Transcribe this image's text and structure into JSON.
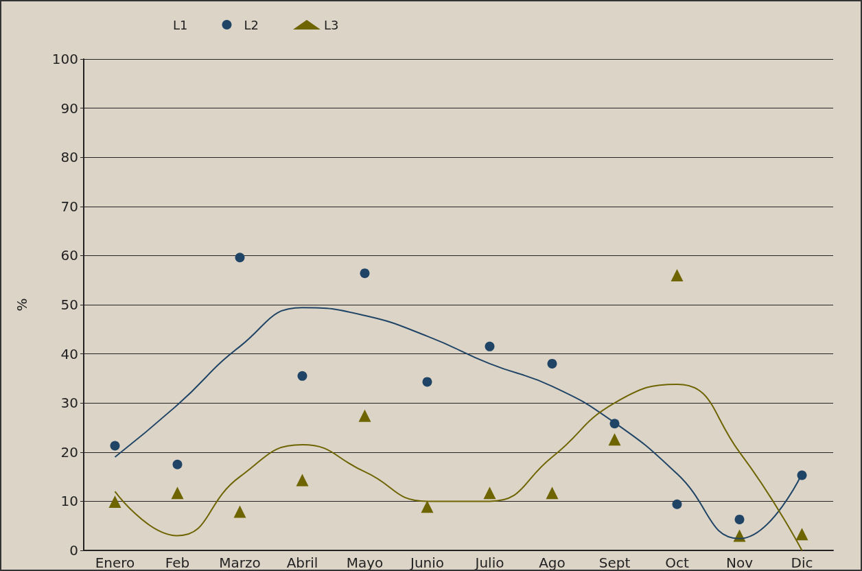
{
  "chart_data": {
    "type": "scatter",
    "ylabel": "%",
    "categories": [
      "Enero",
      "Feb",
      "Marzo",
      "Abril",
      "Mayo",
      "Junio",
      "Julio",
      "Ago",
      "Sept",
      "Oct",
      "Nov",
      "Dic"
    ],
    "ylim": [
      0,
      100
    ],
    "yticks": [
      0,
      10,
      20,
      30,
      40,
      50,
      60,
      70,
      80,
      90,
      100
    ],
    "grid": "y",
    "legend": "top left",
    "series": [
      {
        "name": "L1",
        "marker": "none",
        "values": [
          null,
          null,
          null,
          null,
          null,
          null,
          null,
          null,
          null,
          null,
          null,
          null
        ]
      },
      {
        "name": "L2",
        "color": "#1f4466",
        "marker": "circle",
        "values": [
          21.3,
          17.5,
          59.6,
          35.5,
          56.4,
          34.3,
          41.5,
          38,
          25.8,
          9.4,
          6.3,
          15.3
        ]
      },
      {
        "name": "L3",
        "color": "#6e6400",
        "marker": "triangle",
        "values": [
          9.9,
          11.7,
          7.9,
          14.3,
          27.4,
          8.9,
          11.7,
          11.7,
          22.6,
          56,
          3,
          3.3
        ]
      },
      {
        "type": "line",
        "color": "#1f4466",
        "marker": "none",
        "values": [
          19,
          29.6,
          41.5,
          49.4,
          47.8,
          43.6,
          38,
          33.4,
          26,
          15.6,
          2.4,
          15.6
        ]
      },
      {
        "type": "line",
        "color": "#6e6400",
        "marker": "none",
        "values": [
          12,
          3,
          15,
          21.5,
          16,
          10,
          10,
          19,
          30,
          33.8,
          20,
          0
        ]
      }
    ]
  }
}
